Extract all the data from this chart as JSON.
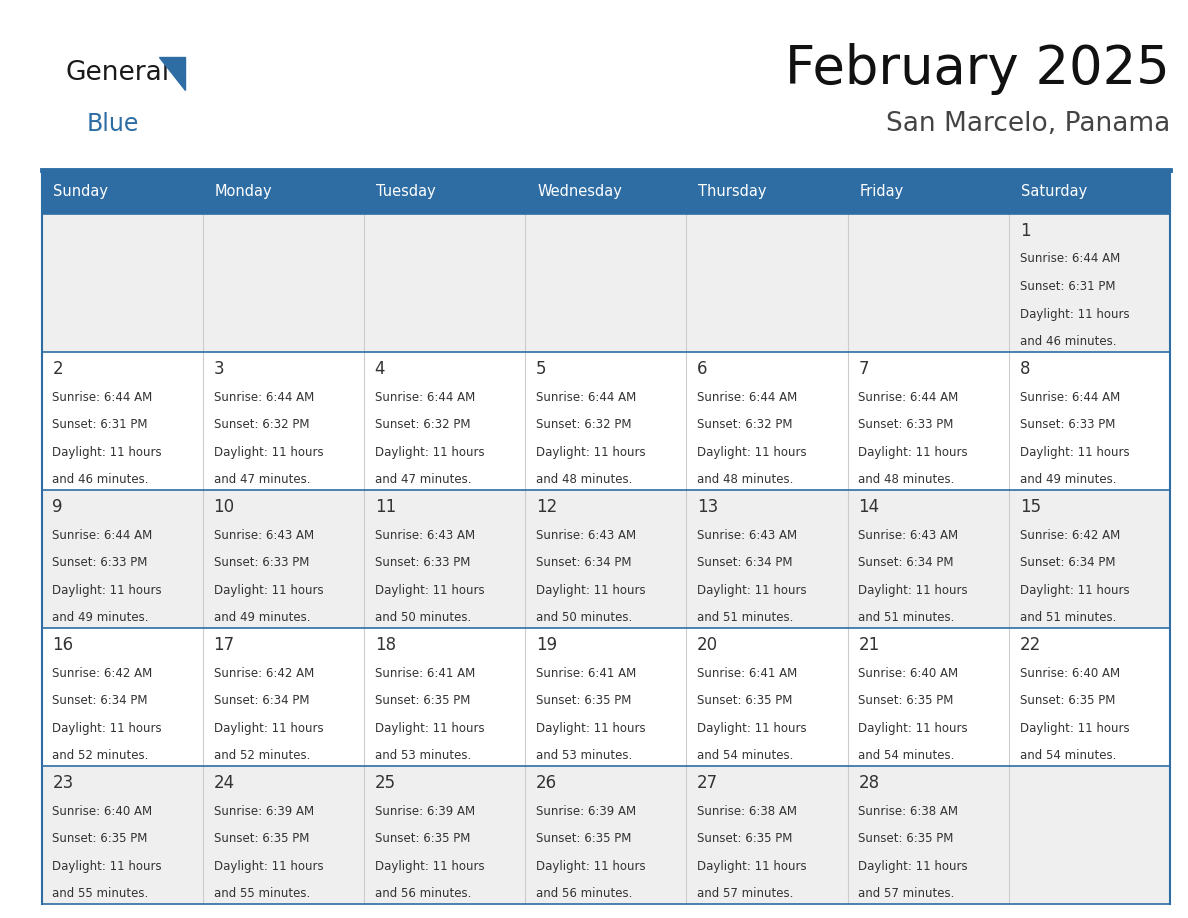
{
  "title": "February 2025",
  "subtitle": "San Marcelo, Panama",
  "days_of_week": [
    "Sunday",
    "Monday",
    "Tuesday",
    "Wednesday",
    "Thursday",
    "Friday",
    "Saturday"
  ],
  "header_bg": "#2E6DA4",
  "header_text_color": "#FFFFFF",
  "cell_bg_light": "#EFEFEF",
  "cell_bg_white": "#FFFFFF",
  "border_color": "#2E6DA4",
  "day_num_color": "#333333",
  "text_color": "#333333",
  "title_color": "#111111",
  "subtitle_color": "#444444",
  "weeks": [
    {
      "days": [
        {
          "day": null,
          "info": null
        },
        {
          "day": null,
          "info": null
        },
        {
          "day": null,
          "info": null
        },
        {
          "day": null,
          "info": null
        },
        {
          "day": null,
          "info": null
        },
        {
          "day": null,
          "info": null
        },
        {
          "day": 1,
          "info": "Sunrise: 6:44 AM\nSunset: 6:31 PM\nDaylight: 11 hours\nand 46 minutes."
        }
      ]
    },
    {
      "days": [
        {
          "day": 2,
          "info": "Sunrise: 6:44 AM\nSunset: 6:31 PM\nDaylight: 11 hours\nand 46 minutes."
        },
        {
          "day": 3,
          "info": "Sunrise: 6:44 AM\nSunset: 6:32 PM\nDaylight: 11 hours\nand 47 minutes."
        },
        {
          "day": 4,
          "info": "Sunrise: 6:44 AM\nSunset: 6:32 PM\nDaylight: 11 hours\nand 47 minutes."
        },
        {
          "day": 5,
          "info": "Sunrise: 6:44 AM\nSunset: 6:32 PM\nDaylight: 11 hours\nand 48 minutes."
        },
        {
          "day": 6,
          "info": "Sunrise: 6:44 AM\nSunset: 6:32 PM\nDaylight: 11 hours\nand 48 minutes."
        },
        {
          "day": 7,
          "info": "Sunrise: 6:44 AM\nSunset: 6:33 PM\nDaylight: 11 hours\nand 48 minutes."
        },
        {
          "day": 8,
          "info": "Sunrise: 6:44 AM\nSunset: 6:33 PM\nDaylight: 11 hours\nand 49 minutes."
        }
      ]
    },
    {
      "days": [
        {
          "day": 9,
          "info": "Sunrise: 6:44 AM\nSunset: 6:33 PM\nDaylight: 11 hours\nand 49 minutes."
        },
        {
          "day": 10,
          "info": "Sunrise: 6:43 AM\nSunset: 6:33 PM\nDaylight: 11 hours\nand 49 minutes."
        },
        {
          "day": 11,
          "info": "Sunrise: 6:43 AM\nSunset: 6:33 PM\nDaylight: 11 hours\nand 50 minutes."
        },
        {
          "day": 12,
          "info": "Sunrise: 6:43 AM\nSunset: 6:34 PM\nDaylight: 11 hours\nand 50 minutes."
        },
        {
          "day": 13,
          "info": "Sunrise: 6:43 AM\nSunset: 6:34 PM\nDaylight: 11 hours\nand 51 minutes."
        },
        {
          "day": 14,
          "info": "Sunrise: 6:43 AM\nSunset: 6:34 PM\nDaylight: 11 hours\nand 51 minutes."
        },
        {
          "day": 15,
          "info": "Sunrise: 6:42 AM\nSunset: 6:34 PM\nDaylight: 11 hours\nand 51 minutes."
        }
      ]
    },
    {
      "days": [
        {
          "day": 16,
          "info": "Sunrise: 6:42 AM\nSunset: 6:34 PM\nDaylight: 11 hours\nand 52 minutes."
        },
        {
          "day": 17,
          "info": "Sunrise: 6:42 AM\nSunset: 6:34 PM\nDaylight: 11 hours\nand 52 minutes."
        },
        {
          "day": 18,
          "info": "Sunrise: 6:41 AM\nSunset: 6:35 PM\nDaylight: 11 hours\nand 53 minutes."
        },
        {
          "day": 19,
          "info": "Sunrise: 6:41 AM\nSunset: 6:35 PM\nDaylight: 11 hours\nand 53 minutes."
        },
        {
          "day": 20,
          "info": "Sunrise: 6:41 AM\nSunset: 6:35 PM\nDaylight: 11 hours\nand 54 minutes."
        },
        {
          "day": 21,
          "info": "Sunrise: 6:40 AM\nSunset: 6:35 PM\nDaylight: 11 hours\nand 54 minutes."
        },
        {
          "day": 22,
          "info": "Sunrise: 6:40 AM\nSunset: 6:35 PM\nDaylight: 11 hours\nand 54 minutes."
        }
      ]
    },
    {
      "days": [
        {
          "day": 23,
          "info": "Sunrise: 6:40 AM\nSunset: 6:35 PM\nDaylight: 11 hours\nand 55 minutes."
        },
        {
          "day": 24,
          "info": "Sunrise: 6:39 AM\nSunset: 6:35 PM\nDaylight: 11 hours\nand 55 minutes."
        },
        {
          "day": 25,
          "info": "Sunrise: 6:39 AM\nSunset: 6:35 PM\nDaylight: 11 hours\nand 56 minutes."
        },
        {
          "day": 26,
          "info": "Sunrise: 6:39 AM\nSunset: 6:35 PM\nDaylight: 11 hours\nand 56 minutes."
        },
        {
          "day": 27,
          "info": "Sunrise: 6:38 AM\nSunset: 6:35 PM\nDaylight: 11 hours\nand 57 minutes."
        },
        {
          "day": 28,
          "info": "Sunrise: 6:38 AM\nSunset: 6:35 PM\nDaylight: 11 hours\nand 57 minutes."
        },
        {
          "day": null,
          "info": null
        }
      ]
    }
  ],
  "logo_general_color": "#1a1a1a",
  "logo_blue_color": "#2E6DA4",
  "fig_width": 11.88,
  "fig_height": 9.18,
  "dpi": 100
}
